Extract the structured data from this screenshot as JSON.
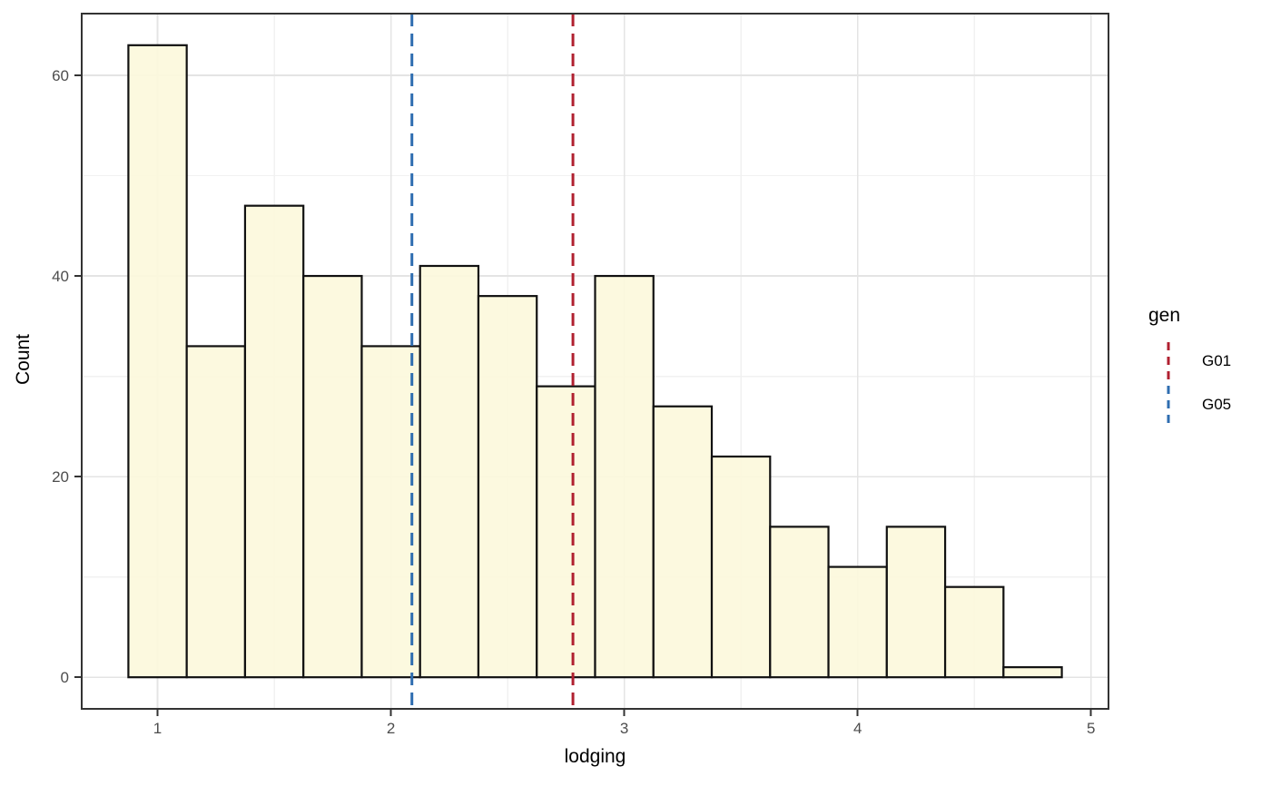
{
  "chart_data": {
    "type": "bar",
    "subtype": "histogram",
    "title": "",
    "xlabel": "lodging",
    "ylabel": "Count",
    "bin_edges": [
      0.875,
      1.125,
      1.375,
      1.625,
      1.875,
      2.125,
      2.375,
      2.625,
      2.875,
      3.125,
      3.375,
      3.625,
      3.875,
      4.125,
      4.375,
      4.625,
      4.875
    ],
    "counts": [
      63,
      33,
      47,
      40,
      33,
      41,
      38,
      29,
      40,
      27,
      22,
      15,
      11,
      15,
      9,
      1
    ],
    "xlim": [
      0.675,
      5.075
    ],
    "ylim": [
      -3.15,
      66.15
    ],
    "x_ticks": [
      1,
      2,
      3,
      4,
      5
    ],
    "x_minor_ticks": [
      1.5,
      2.5,
      3.5,
      4.5
    ],
    "y_ticks": [
      0,
      20,
      40,
      60
    ],
    "y_minor_ticks": [
      10,
      30,
      50
    ],
    "grid": "major+minor",
    "legend_position": "right",
    "legend": {
      "title": "gen"
    },
    "vlines": [
      {
        "label": "G01",
        "x": 2.78,
        "color": "#B02030",
        "style": "dashed"
      },
      {
        "label": "G05",
        "x": 2.09,
        "color": "#2E6DB0",
        "style": "dashed"
      }
    ],
    "style": {
      "bar_fill": "#FCF8DC",
      "bar_fill_opacity": 0.9,
      "bar_stroke": "#111111",
      "panel_background": "#FFFFFF",
      "panel_border": "#333333",
      "grid_major": "#E4E4E4",
      "grid_minor": "#F1F1F1",
      "tick_color": "#333333",
      "tick_label_color": "#4D4D4D",
      "axis_title_color": "#000000"
    }
  }
}
